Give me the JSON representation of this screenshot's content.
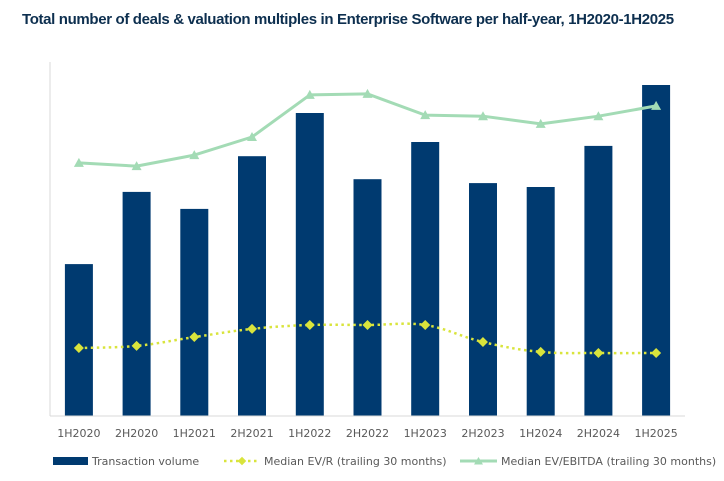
{
  "chart_data": {
    "type": "bar",
    "title": "Total number of deals & valuation multiples in Enterprise Software per half-year, 1H2020-1H2025",
    "xlabel": "",
    "ylabel": "",
    "value_units": "relative index (no y-axis labels shown; 100 = top of plot area)",
    "ylim": [
      0,
      100
    ],
    "grid": false,
    "legend_position": "bottom",
    "categories": [
      "1H2020",
      "2H2020",
      "1H2021",
      "2H2021",
      "1H2022",
      "2H2022",
      "1H2023",
      "2H2023",
      "1H2024",
      "2H2024",
      "1H2025"
    ],
    "series": [
      {
        "name": "Transaction volume",
        "type": "bar",
        "color": "#003a70",
        "values": [
          42.9,
          63.3,
          58.5,
          73.4,
          85.6,
          66.9,
          77.4,
          65.8,
          64.7,
          76.3,
          93.5
        ]
      },
      {
        "name": "Median EV/R (trailing 30 months)",
        "type": "line",
        "style": "dotted-smooth",
        "marker": "diamond",
        "color": "#d9e43c",
        "values": [
          19.2,
          19.8,
          22.3,
          24.6,
          25.7,
          25.7,
          25.7,
          20.9,
          18.1,
          17.8,
          17.8
        ]
      },
      {
        "name": "Median EV/EBITDA (trailing 30 months)",
        "type": "line",
        "style": "solid",
        "marker": "triangle",
        "color": "#a3dbb5",
        "values": [
          71.5,
          70.6,
          73.7,
          78.8,
          90.7,
          91.0,
          85.0,
          84.7,
          82.5,
          84.7,
          87.6
        ]
      }
    ]
  },
  "colors": {
    "title": "#0d2f4f",
    "axis": "#d9d9d9",
    "tick_text": "#595959"
  }
}
